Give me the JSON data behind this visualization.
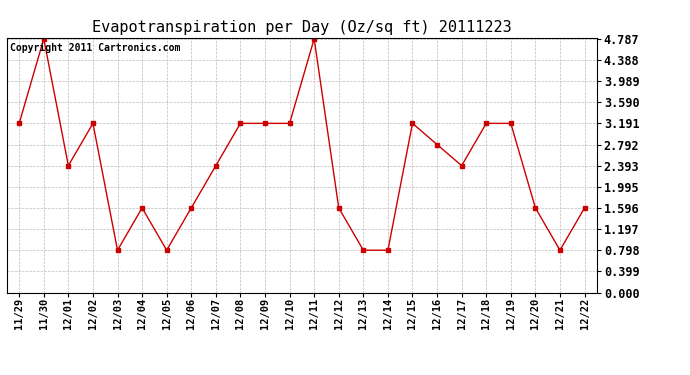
{
  "title": "Evapotranspiration per Day (Oz/sq ft) 20111223",
  "copyright": "Copyright 2011 Cartronics.com",
  "x_labels": [
    "11/29",
    "11/30",
    "12/01",
    "12/02",
    "12/03",
    "12/04",
    "12/05",
    "12/06",
    "12/07",
    "12/08",
    "12/09",
    "12/10",
    "12/11",
    "12/12",
    "12/13",
    "12/14",
    "12/15",
    "12/16",
    "12/17",
    "12/18",
    "12/19",
    "12/20",
    "12/21",
    "12/22"
  ],
  "y_values": [
    3.191,
    4.787,
    2.393,
    3.191,
    0.798,
    1.596,
    0.798,
    1.596,
    2.393,
    3.191,
    3.191,
    3.191,
    4.787,
    1.596,
    0.798,
    0.798,
    3.191,
    2.792,
    2.393,
    3.191,
    3.191,
    1.596,
    0.798,
    1.596
  ],
  "y_ticks": [
    0.0,
    0.399,
    0.798,
    1.197,
    1.596,
    1.995,
    2.393,
    2.792,
    3.191,
    3.59,
    3.989,
    4.388,
    4.787
  ],
  "line_color": "#cc0000",
  "marker": "s",
  "marker_color": "#cc0000",
  "bg_color": "#ffffff",
  "grid_color": "#bbbbbb",
  "title_fontsize": 11,
  "copyright_fontsize": 7,
  "tick_fontsize": 8.5,
  "xtick_fontsize": 7.5,
  "ylim": [
    0.0,
    4.787
  ]
}
